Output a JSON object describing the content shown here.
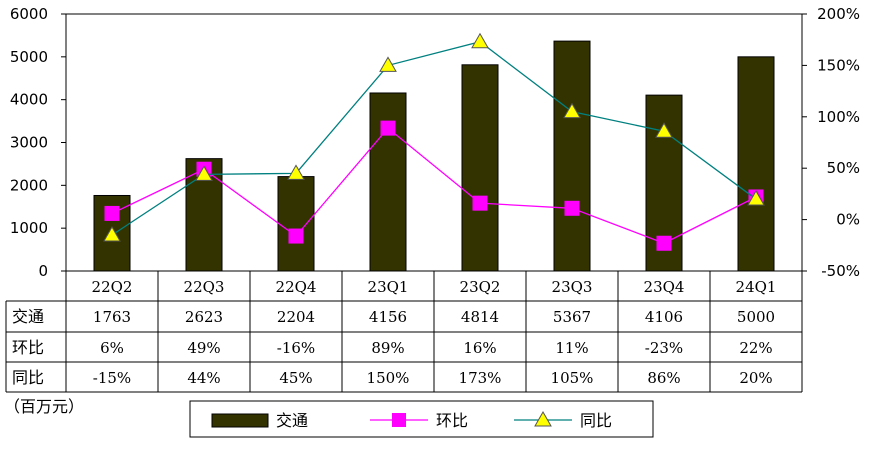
{
  "chart_data": {
    "type": "bar",
    "categories": [
      "22Q2",
      "22Q3",
      "22Q4",
      "23Q1",
      "23Q2",
      "23Q3",
      "23Q4",
      "24Q1"
    ],
    "series": [
      {
        "name": "交通",
        "kind": "bar",
        "axis": "left",
        "color": "#333300",
        "values": [
          1763,
          2623,
          2204,
          4156,
          4814,
          5367,
          4106,
          5000
        ],
        "labels": [
          "1763",
          "2623",
          "2204",
          "4156",
          "4814",
          "5367",
          "4106",
          "5000"
        ]
      },
      {
        "name": "环比",
        "kind": "line",
        "axis": "right",
        "color": "#ff00ff",
        "marker": "square",
        "values": [
          6,
          49,
          -16,
          89,
          16,
          11,
          -23,
          22
        ],
        "labels": [
          "6%",
          "49%",
          "-16%",
          "89%",
          "16%",
          "11%",
          "-23%",
          "22%"
        ]
      },
      {
        "name": "同比",
        "kind": "line",
        "axis": "right",
        "color": "#008080",
        "marker": "triangle",
        "marker_color": "#ffff00",
        "values": [
          -15,
          44,
          45,
          150,
          173,
          105,
          86,
          20
        ],
        "labels": [
          "-15%",
          "44%",
          "45%",
          "150%",
          "173%",
          "105%",
          "86%",
          "20%"
        ]
      }
    ],
    "y_left": {
      "range": [
        0,
        6000
      ],
      "ticks": [
        "0",
        "1000",
        "2000",
        "3000",
        "4000",
        "5000",
        "6000"
      ]
    },
    "y_right": {
      "range": [
        -50,
        200
      ],
      "ticks": [
        "-50%",
        "0%",
        "50%",
        "100%",
        "150%",
        "200%"
      ]
    },
    "unit_label": "（百万元）",
    "legend_position": "bottom-center",
    "grid": false
  }
}
